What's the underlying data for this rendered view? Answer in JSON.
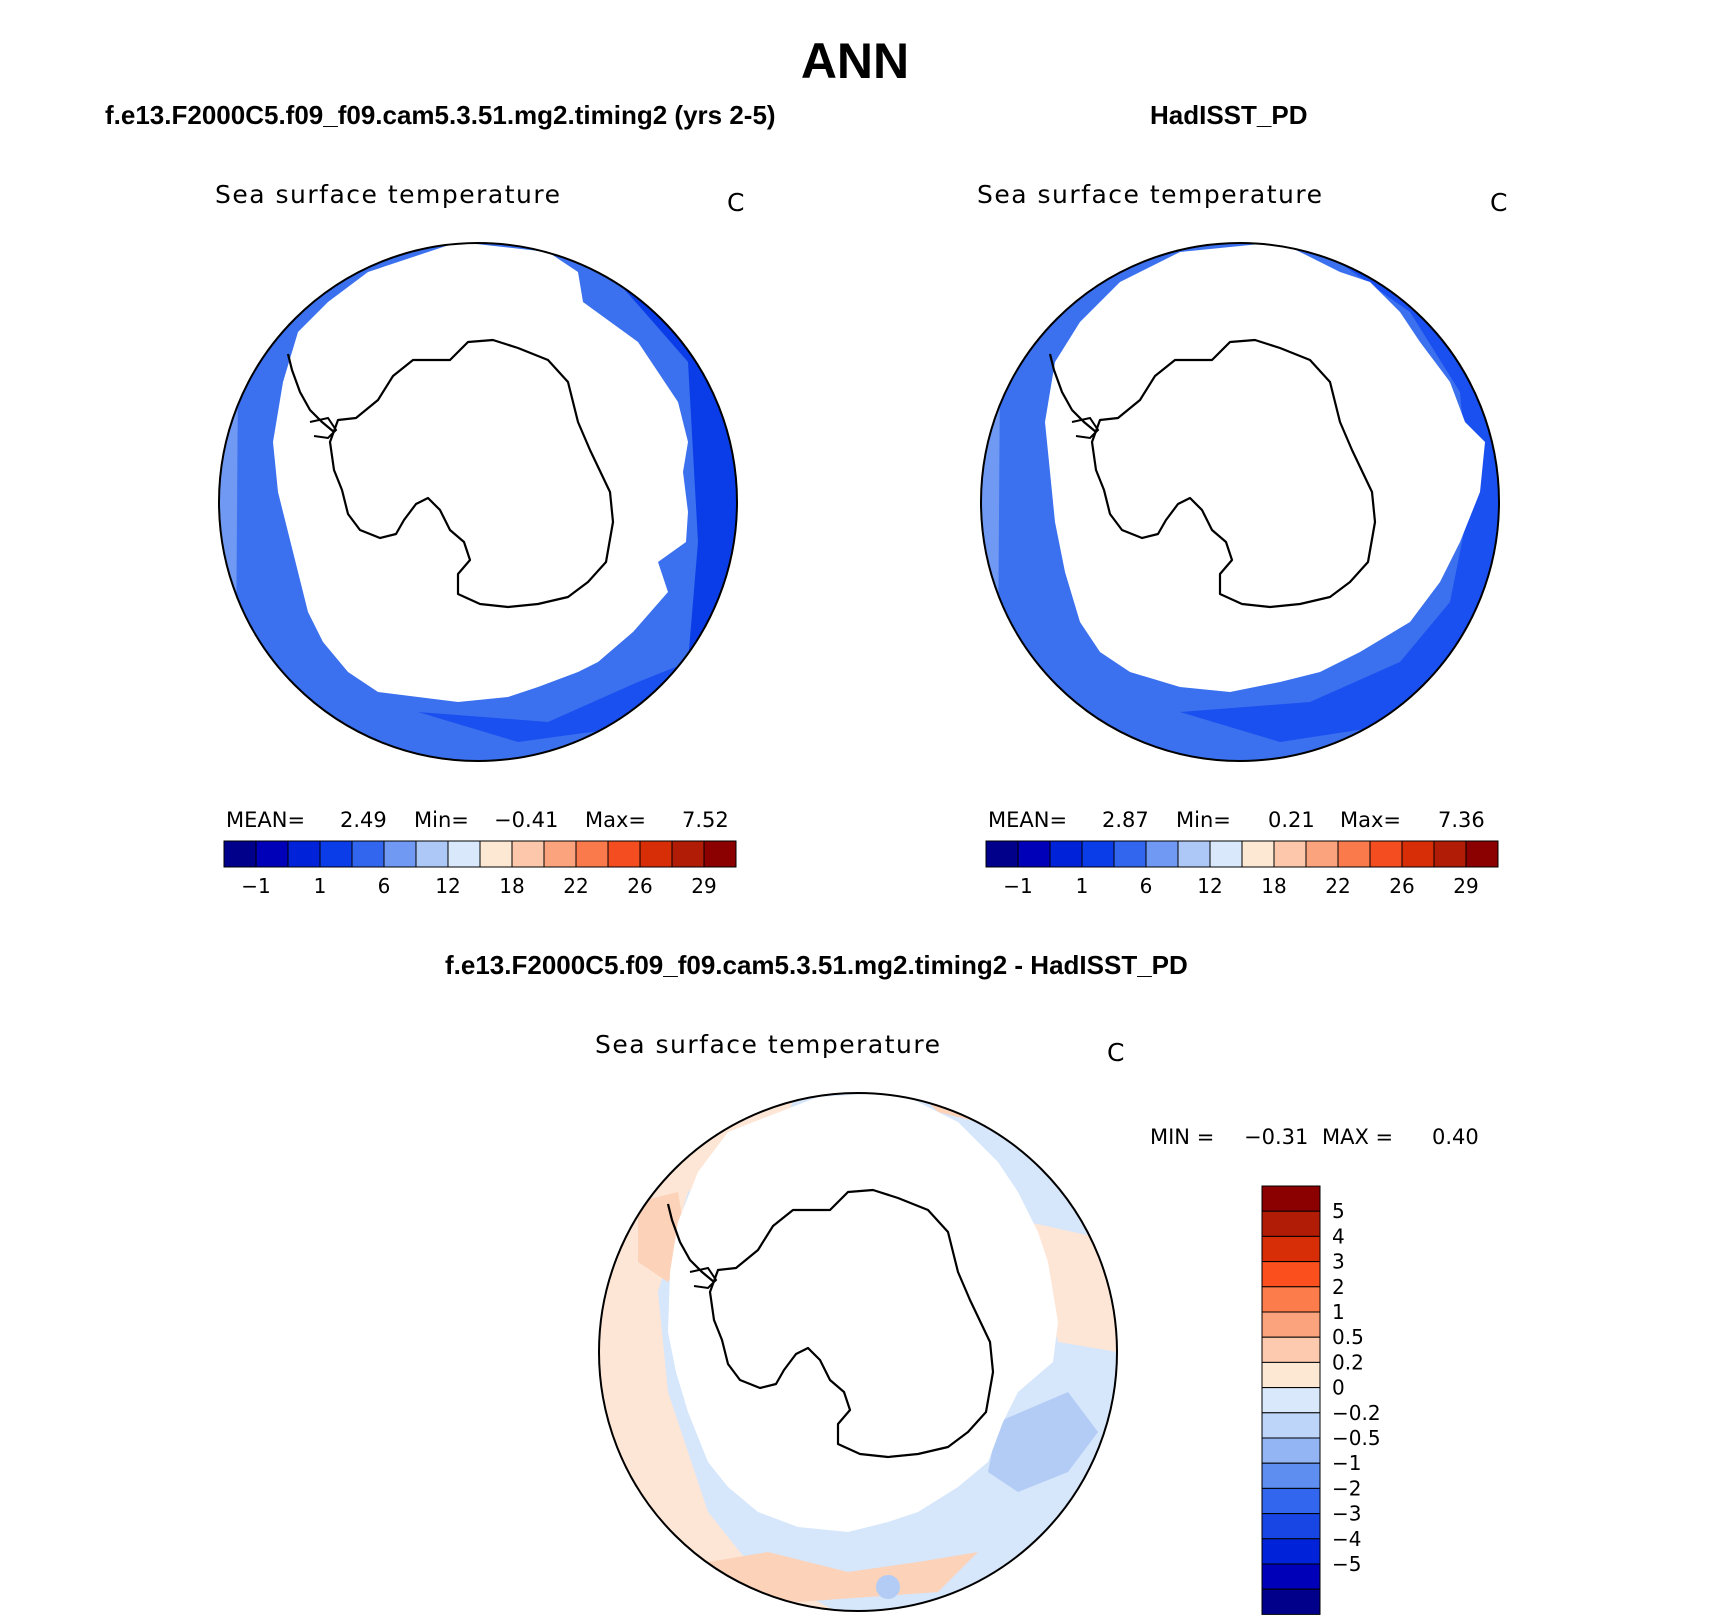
{
  "figure": {
    "title": "ANN",
    "unit": "C",
    "variable": "Sea surface temperature"
  },
  "panels": {
    "model": {
      "case_title": "f.e13.F2000C5.f09_f09.cam5.3.51.mg2.timing2 (yrs 2-5)",
      "variable": "Sea surface temperature",
      "unit": "C",
      "mean_label": "MEAN=",
      "mean_value": "2.49",
      "min_label": "Min=",
      "min_value": "−0.41",
      "max_label": "Max=",
      "max_value": "7.52"
    },
    "obs": {
      "case_title": "HadISST_PD",
      "variable": "Sea surface temperature",
      "unit": "C",
      "mean_label": "MEAN=",
      "mean_value": "2.87",
      "min_label": "Min=",
      "min_value": "0.21",
      "max_label": "Max=",
      "max_value": "7.36"
    },
    "diff": {
      "case_title": "f.e13.F2000C5.f09_f09.cam5.3.51.mg2.timing2 - HadISST_PD",
      "variable": "Sea surface temperature",
      "unit": "C",
      "min_label": "MIN =",
      "min_value": "−0.31",
      "max_label": "MAX =",
      "max_value": "0.40"
    }
  },
  "colorbars": {
    "absolute": {
      "colors": [
        "#00008b",
        "#0000b8",
        "#0022d8",
        "#0a3de8",
        "#3366ee",
        "#6f99f2",
        "#adc7f6",
        "#d9e9fb",
        "#fde8d4",
        "#fcc7aa",
        "#fba37c",
        "#fb7a4c",
        "#f34d20",
        "#d82e08",
        "#b01c06",
        "#8b0000"
      ],
      "tick_labels": [
        "−1",
        "1",
        "6",
        "12",
        "18",
        "22",
        "26",
        "29"
      ]
    },
    "difference": {
      "colors": [
        "#8b0000",
        "#b01c06",
        "#d82e08",
        "#fb4f1e",
        "#fc7d4b",
        "#fba37c",
        "#fdcab0",
        "#fde8d4",
        "#d9e9fb",
        "#bcd5f8",
        "#93b5f4",
        "#5e8ef0",
        "#3366ee",
        "#1746e4",
        "#0022d8",
        "#0000b8",
        "#00008b"
      ],
      "tick_labels": [
        "5",
        "4",
        "3",
        "2",
        "1",
        "0.5",
        "0.2",
        "0",
        "−0.2",
        "−0.5",
        "−1",
        "−2",
        "−3",
        "−4",
        "−5"
      ]
    }
  },
  "map_colors": {
    "deep_blue": "#0a3de8",
    "mid_blue": "#1a4ff0",
    "light_blue": "#3b70ee",
    "pale_blue": "#7ba4f4",
    "diff_warm": "#fcd2b8",
    "diff_warm_light": "#fde6d6",
    "diff_cool": "#d6e6fb",
    "diff_cool_mid": "#b3ccf6"
  }
}
